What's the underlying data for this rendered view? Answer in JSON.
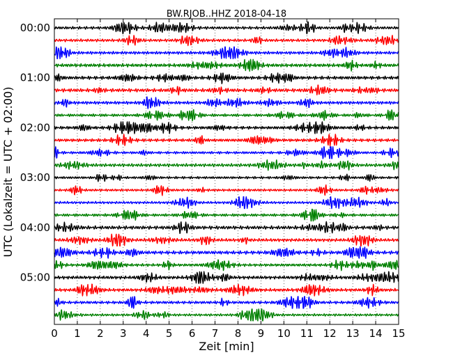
{
  "chart_data": {
    "type": "line",
    "title": "BW.RJOB..HHZ 2018-04-18",
    "xlabel": "Zeit  [min]",
    "ylabel": "UTC (Lokalzeit = UTC + 02:00)",
    "xlim": [
      0,
      15
    ],
    "x_ticks": [
      0,
      1,
      2,
      3,
      4,
      5,
      6,
      7,
      8,
      9,
      10,
      11,
      12,
      13,
      14,
      15
    ],
    "x_tick_labels": [
      "0",
      "1",
      "2",
      "3",
      "4",
      "5",
      "6",
      "7",
      "8",
      "9",
      "10",
      "11",
      "12",
      "13",
      "14",
      "15"
    ],
    "y_tick_labels": [
      "00:00",
      "01:00",
      "02:00",
      "03:00",
      "04:00",
      "05:00"
    ],
    "trace_interval_min": 15,
    "trace_count": 24,
    "trace_colors": [
      "#000000",
      "#ff0000",
      "#0000ff",
      "#008000"
    ],
    "grid": "vertical-dotted",
    "series_description": "continuous seismogram, each 15-minute segment drawn as one trace, colors cycle black/red/blue/green"
  }
}
